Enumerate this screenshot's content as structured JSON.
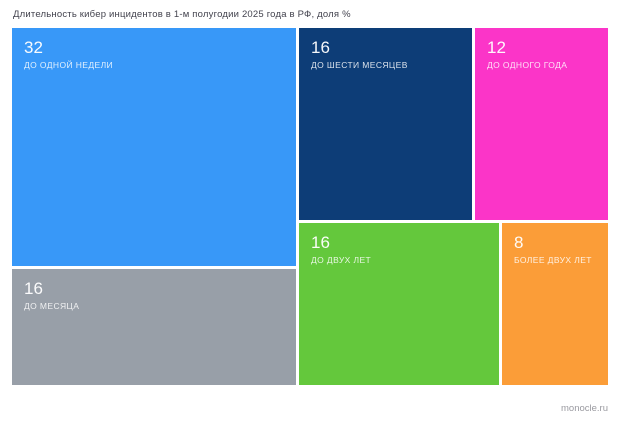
{
  "chart_data": {
    "type": "treemap",
    "title": "Длительность кибер инцидентов в 1-м полугодии 2025 года в РФ, доля %",
    "unit": "доля %",
    "items": [
      {
        "label": "ДО ОДНОЙ НЕДЕЛИ",
        "value": 32,
        "color": "#3898f8"
      },
      {
        "label": "ДО МЕСЯЦА",
        "value": 16,
        "color": "#989fa8"
      },
      {
        "label": "ДО ШЕСТИ МЕСЯЦЕВ",
        "value": 16,
        "color": "#0d3d77"
      },
      {
        "label": "ДО ОДНОГО ГОДА",
        "value": 12,
        "color": "#fb35c8"
      },
      {
        "label": "ДО ДВУХ ЛЕТ",
        "value": 16,
        "color": "#64c83c"
      },
      {
        "label": "БОЛЕЕ ДВУХ ЛЕТ",
        "value": 8,
        "color": "#fb9d38"
      }
    ],
    "source": "monocle.ru",
    "legend": "none",
    "grid": "off"
  }
}
